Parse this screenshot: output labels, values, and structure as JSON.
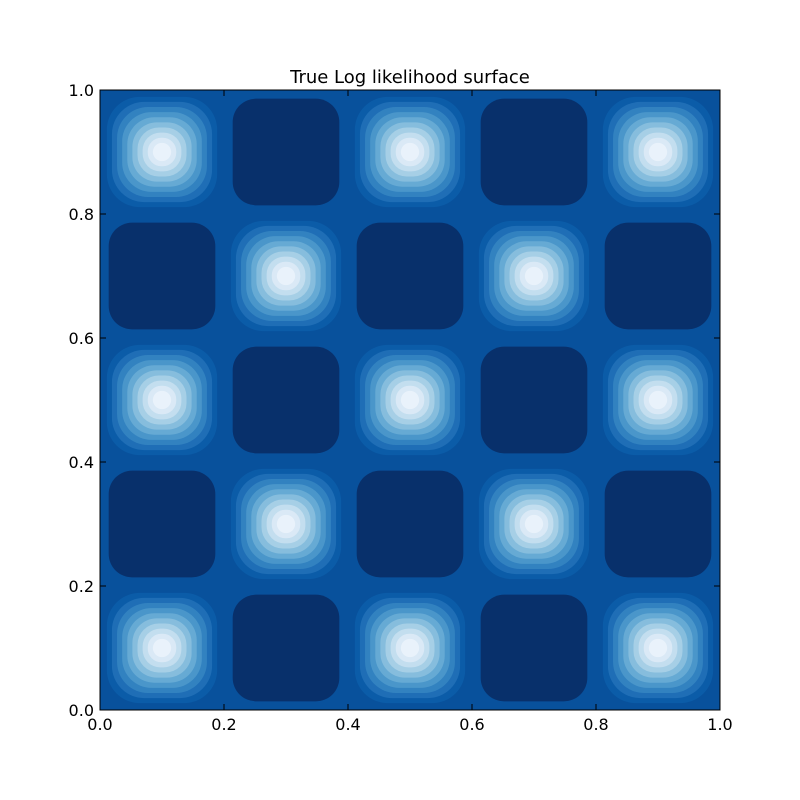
{
  "chart_data": {
    "type": "heatmap",
    "title": "True Log likelihood surface",
    "xlabel": "",
    "ylabel": "",
    "xlim": [
      0.0,
      1.0
    ],
    "ylim": [
      0.0,
      1.0
    ],
    "x_ticks": [
      "0.0",
      "0.2",
      "0.4",
      "0.6",
      "0.8",
      "1.0"
    ],
    "y_ticks": [
      "0.0",
      "0.2",
      "0.4",
      "0.6",
      "0.8",
      "1.0"
    ],
    "colormap": "Blues_r",
    "colors": {
      "low": "#08306b",
      "mid": "#08519c",
      "high": "#f7fbff"
    },
    "grid": false,
    "legend": "none",
    "peaks": [
      {
        "x": 0.1,
        "y": 0.1
      },
      {
        "x": 0.5,
        "y": 0.1
      },
      {
        "x": 0.9,
        "y": 0.1
      },
      {
        "x": 0.3,
        "y": 0.3
      },
      {
        "x": 0.7,
        "y": 0.3
      },
      {
        "x": 0.1,
        "y": 0.5
      },
      {
        "x": 0.5,
        "y": 0.5
      },
      {
        "x": 0.9,
        "y": 0.5
      },
      {
        "x": 0.3,
        "y": 0.7
      },
      {
        "x": 0.7,
        "y": 0.7
      },
      {
        "x": 0.1,
        "y": 0.9
      },
      {
        "x": 0.5,
        "y": 0.9
      },
      {
        "x": 0.9,
        "y": 0.9
      }
    ],
    "troughs": [
      {
        "x": 0.3,
        "y": 0.1
      },
      {
        "x": 0.7,
        "y": 0.1
      },
      {
        "x": 0.1,
        "y": 0.3
      },
      {
        "x": 0.5,
        "y": 0.3
      },
      {
        "x": 0.9,
        "y": 0.3
      },
      {
        "x": 0.3,
        "y": 0.5
      },
      {
        "x": 0.7,
        "y": 0.5
      },
      {
        "x": 0.1,
        "y": 0.7
      },
      {
        "x": 0.5,
        "y": 0.7
      },
      {
        "x": 0.9,
        "y": 0.7
      },
      {
        "x": 0.3,
        "y": 0.9
      },
      {
        "x": 0.7,
        "y": 0.9
      }
    ]
  }
}
